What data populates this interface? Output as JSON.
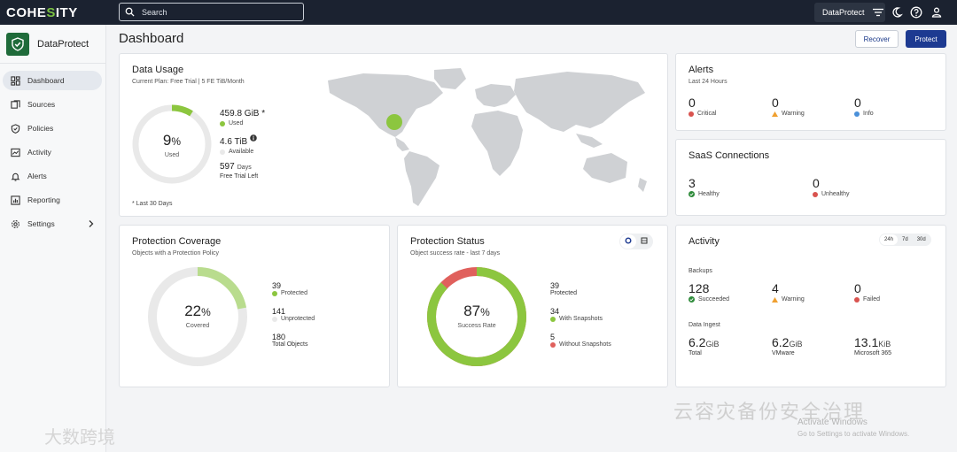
{
  "topbar": {
    "logo_left": "COHE",
    "logo_accent": "S",
    "logo_right": "ITY",
    "search_placeholder": "Search",
    "tenant_label": "DataProtect"
  },
  "sidebar": {
    "brand": "DataProtect",
    "items": [
      {
        "label": "Dashboard",
        "icon": "dashboard-icon",
        "active": true
      },
      {
        "label": "Sources",
        "icon": "sources-icon"
      },
      {
        "label": "Policies",
        "icon": "policies-icon"
      },
      {
        "label": "Activity",
        "icon": "activity-icon"
      },
      {
        "label": "Alerts",
        "icon": "bell-icon"
      },
      {
        "label": "Reporting",
        "icon": "reporting-icon"
      },
      {
        "label": "Settings",
        "icon": "gear-icon"
      }
    ]
  },
  "header": {
    "title": "Dashboard",
    "recover_label": "Recover",
    "protect_label": "Protect"
  },
  "data_usage": {
    "title": "Data Usage",
    "subtitle": "Current Plan: Free Trial | 5 FE TiB/Month",
    "percent_used": 9,
    "percent_symbol": "%",
    "center_caption": "Used",
    "used_value": "459.8 GiB *",
    "used_label": "Used",
    "available_value": "4.6 TiB",
    "available_label": "Available",
    "days_value": "597",
    "days_unit": "Days",
    "days_label": "Free Trial Left",
    "footnote": "* Last 30 Days"
  },
  "alerts": {
    "title": "Alerts",
    "subtitle": "Last 24 Hours",
    "critical": "0",
    "critical_label": "Critical",
    "warning": "0",
    "warning_label": "Warning",
    "info": "0",
    "info_label": "Info"
  },
  "saas": {
    "title": "SaaS Connections",
    "healthy": "3",
    "healthy_label": "Healthy",
    "unhealthy": "0",
    "unhealthy_label": "Unhealthy"
  },
  "coverage": {
    "title": "Protection Coverage",
    "subtitle": "Objects with a Protection Policy",
    "percent": 22,
    "percent_symbol": "%",
    "center_caption": "Covered",
    "protected": "39",
    "protected_label": "Protected",
    "unprotected": "141",
    "unprotected_label": "Unprotected",
    "total": "180",
    "total_label": "Total Objects"
  },
  "status": {
    "title": "Protection Status",
    "subtitle": "Object success rate - last 7 days",
    "percent": 87,
    "percent_symbol": "%",
    "center_caption": "Success Rate",
    "protected": "39",
    "protected_label": "Protected",
    "with_snap": "34",
    "with_snap_label": "With Snapshots",
    "without_snap": "5",
    "without_snap_label": "Without Snapshots"
  },
  "activity": {
    "title": "Activity",
    "ranges": [
      "24h",
      "7d",
      "30d"
    ],
    "backups_label": "Backups",
    "succeeded": "128",
    "succeeded_label": "Succeeded",
    "warning": "4",
    "warning_label": "Warning",
    "failed": "0",
    "failed_label": "Failed",
    "ingest_label": "Data Ingest",
    "total_val": "6.2",
    "total_unit": "GiB",
    "total_label": "Total",
    "vmware_val": "6.2",
    "vmware_unit": "GiB",
    "vmware_label": "VMware",
    "m365_val": "13.1",
    "m365_unit": "KiB",
    "m365_label": "Microsoft 365"
  },
  "colors": {
    "green": "#8cc63f",
    "red": "#e0605c",
    "ring": "#e9e9e9",
    "map": "#cfd1d4",
    "warning": "#f0a030",
    "info": "#4a90d9",
    "critical": "#d9534f",
    "healthy": "#2e8b3a"
  },
  "overlay": {
    "watermark": "云容灾备份安全治理",
    "watermark2": "大数跨境",
    "activate_title": "Activate Windows",
    "activate_sub": "Go to Settings to activate Windows."
  }
}
